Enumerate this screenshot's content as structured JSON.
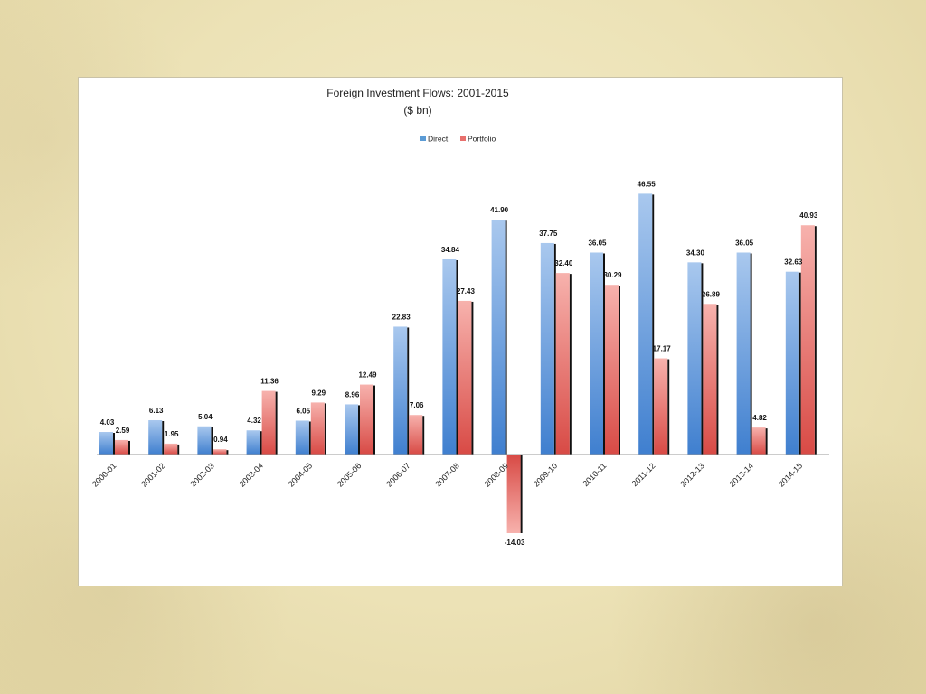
{
  "chart_data": {
    "type": "bar",
    "title": "Foreign Investment Flows: 2001-2015",
    "subtitle": "($ bn)",
    "legend_position": "top-center",
    "categories": [
      "2000-01",
      "2001-02",
      "2002-03",
      "2003-04",
      "2004-05",
      "2005-06",
      "2006-07",
      "2007-08",
      "2008-09",
      "2009-10",
      "2010-11",
      "2011-12",
      "2012-13",
      "2013-14",
      "2014-15"
    ],
    "series": [
      {
        "name": "Direct",
        "color": "#5b9bd5",
        "values": [
          4.03,
          6.13,
          5.04,
          4.32,
          6.05,
          8.96,
          22.83,
          34.84,
          41.9,
          37.75,
          36.05,
          46.55,
          34.3,
          36.05,
          32.63
        ]
      },
      {
        "name": "Portfolio",
        "color": "#e8706d",
        "values": [
          2.59,
          1.95,
          0.94,
          11.36,
          9.29,
          12.49,
          7.06,
          27.43,
          -14.03,
          32.4,
          30.29,
          17.17,
          26.89,
          4.82,
          40.93
        ]
      }
    ],
    "value_labels": [
      [
        "4.03",
        "6.13",
        "5.04",
        "4.32",
        "6.05",
        "8.96",
        "22.83",
        "34.84",
        "41.90",
        "37.75",
        "36.05",
        "46.55",
        "34.30",
        "36.05",
        "32.63"
      ],
      [
        "2.59",
        "1.95",
        "0.94",
        "11.36",
        "9.29",
        "12.49",
        "7.06",
        "27.43",
        "-14.03",
        "32.40",
        "30.29",
        "17.17",
        "26.89",
        "4.82",
        "40.93"
      ]
    ],
    "ylim": [
      -15,
      50
    ],
    "grid": false
  }
}
